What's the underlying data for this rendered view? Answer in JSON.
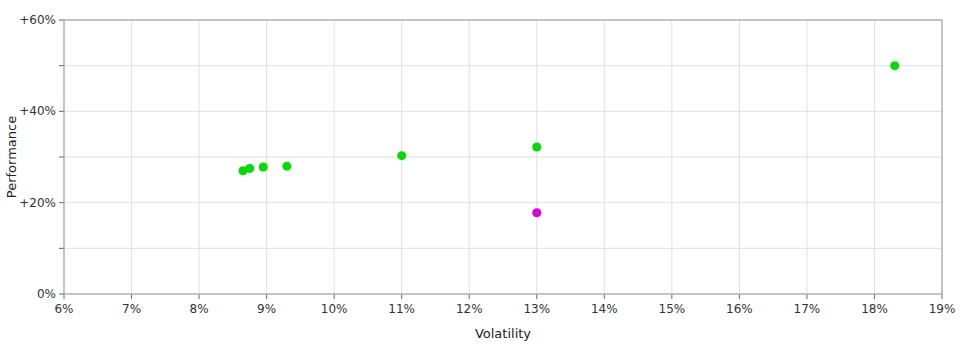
{
  "chart_data": {
    "type": "scatter",
    "xlabel": "Volatility",
    "ylabel": "Performance",
    "xlim": [
      0.06,
      0.19
    ],
    "ylim": [
      0.0,
      0.6
    ],
    "xticks": [
      {
        "value": 0.06,
        "label": "6%"
      },
      {
        "value": 0.07,
        "label": "7%"
      },
      {
        "value": 0.08,
        "label": "8%"
      },
      {
        "value": 0.09,
        "label": "9%"
      },
      {
        "value": 0.1,
        "label": "10%"
      },
      {
        "value": 0.11,
        "label": "11%"
      },
      {
        "value": 0.12,
        "label": "12%"
      },
      {
        "value": 0.13,
        "label": "13%"
      },
      {
        "value": 0.14,
        "label": "14%"
      },
      {
        "value": 0.15,
        "label": "15%"
      },
      {
        "value": 0.16,
        "label": "16%"
      },
      {
        "value": 0.17,
        "label": "17%"
      },
      {
        "value": 0.18,
        "label": "18%"
      },
      {
        "value": 0.19,
        "label": "19%"
      }
    ],
    "yticks": [
      {
        "value": 0.0,
        "label": "0%"
      },
      {
        "value": 0.1,
        "label": null
      },
      {
        "value": 0.2,
        "label": "+20%"
      },
      {
        "value": 0.3,
        "label": null
      },
      {
        "value": 0.4,
        "label": "+40%"
      },
      {
        "value": 0.5,
        "label": null
      },
      {
        "value": 0.6,
        "label": "+60%"
      }
    ],
    "grid": true,
    "series": [
      {
        "color": "#00dd00",
        "marker": "circle",
        "x": [
          0.0865,
          0.0875,
          0.0895,
          0.093,
          0.11,
          0.13,
          0.183
        ],
        "values": [
          0.27,
          0.275,
          0.278,
          0.28,
          0.303,
          0.322,
          0.5
        ]
      },
      {
        "color": "#dd00dd",
        "marker": "circle",
        "x": [
          0.13
        ],
        "values": [
          0.178
        ]
      }
    ]
  }
}
